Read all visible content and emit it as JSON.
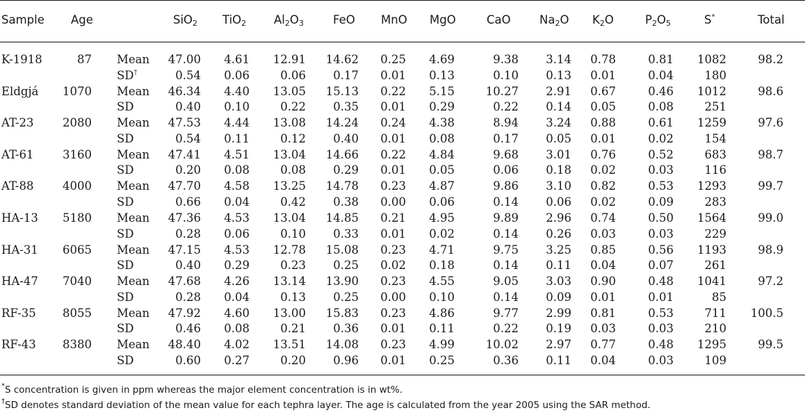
{
  "table": {
    "headers": [
      {
        "key": "sample",
        "label": "Sample"
      },
      {
        "key": "age",
        "label": "Age"
      },
      {
        "key": "stat",
        "label": ""
      },
      {
        "key": "sio2",
        "base": "SiO",
        "sub": "2"
      },
      {
        "key": "tio2",
        "base": "TiO",
        "sub": "2"
      },
      {
        "key": "al2o3",
        "base": "Al",
        "sub": "2",
        "base2": "O",
        "sub2": "3"
      },
      {
        "key": "feo",
        "label": "FeO"
      },
      {
        "key": "mno",
        "label": "MnO"
      },
      {
        "key": "mgo",
        "label": "MgO"
      },
      {
        "key": "cao",
        "label": "CaO"
      },
      {
        "key": "na2o",
        "base": "Na",
        "sub": "2",
        "base2": "O"
      },
      {
        "key": "k2o",
        "base": "K",
        "sub": "2",
        "base2": "O"
      },
      {
        "key": "p2o5",
        "base": "P",
        "sub": "2",
        "base2": "O",
        "sub2": "5"
      },
      {
        "key": "s",
        "base": "S",
        "sup": "*"
      },
      {
        "key": "total",
        "label": "Total"
      }
    ],
    "rows": [
      {
        "sample": "K-1918",
        "age": "87",
        "mean": [
          "47.00",
          "4.61",
          "12.91",
          "14.62",
          "0.25",
          "4.69",
          "9.38",
          "3.14",
          "0.78",
          "0.81",
          "1082"
        ],
        "sd": [
          "0.54",
          "0.06",
          "0.06",
          "0.17",
          "0.01",
          "0.13",
          "0.10",
          "0.13",
          "0.01",
          "0.04",
          "180"
        ],
        "total": "98.2",
        "sd_label": "SD",
        "sd_mark": "†"
      },
      {
        "sample": "Eldgjá",
        "age": "1070",
        "mean": [
          "46.34",
          "4.40",
          "13.05",
          "15.13",
          "0.22",
          "5.15",
          "10.27",
          "2.91",
          "0.67",
          "0.46",
          "1012"
        ],
        "sd": [
          "0.40",
          "0.10",
          "0.22",
          "0.35",
          "0.01",
          "0.29",
          "0.22",
          "0.14",
          "0.05",
          "0.08",
          "251"
        ],
        "total": "98.6",
        "sd_label": "SD",
        "sd_mark": ""
      },
      {
        "sample": "AT-23",
        "age": "2080",
        "mean": [
          "47.53",
          "4.44",
          "13.08",
          "14.24",
          "0.24",
          "4.38",
          "8.94",
          "3.24",
          "0.88",
          "0.61",
          "1259"
        ],
        "sd": [
          "0.54",
          "0.11",
          "0.12",
          "0.40",
          "0.01",
          "0.08",
          "0.17",
          "0.05",
          "0.01",
          "0.02",
          "154"
        ],
        "total": "97.6",
        "sd_label": "SD",
        "sd_mark": ""
      },
      {
        "sample": "AT-61",
        "age": "3160",
        "mean": [
          "47.41",
          "4.51",
          "13.04",
          "14.66",
          "0.22",
          "4.84",
          "9.68",
          "3.01",
          "0.76",
          "0.52",
          "683"
        ],
        "sd": [
          "0.20",
          "0.08",
          "0.08",
          "0.29",
          "0.01",
          "0.05",
          "0.06",
          "0.18",
          "0.02",
          "0.03",
          "116"
        ],
        "total": "98.7",
        "sd_label": "SD",
        "sd_mark": ""
      },
      {
        "sample": "AT-88",
        "age": "4000",
        "mean": [
          "47.70",
          "4.58",
          "13.25",
          "14.78",
          "0.23",
          "4.87",
          "9.86",
          "3.10",
          "0.82",
          "0.53",
          "1293"
        ],
        "sd": [
          "0.66",
          "0.04",
          "0.42",
          "0.38",
          "0.00",
          "0.06",
          "0.14",
          "0.06",
          "0.02",
          "0.09",
          "283"
        ],
        "total": "99.7",
        "sd_label": "SD",
        "sd_mark": ""
      },
      {
        "sample": "HA-13",
        "age": "5180",
        "mean": [
          "47.36",
          "4.53",
          "13.04",
          "14.85",
          "0.21",
          "4.95",
          "9.89",
          "2.96",
          "0.74",
          "0.50",
          "1564"
        ],
        "sd": [
          "0.28",
          "0.06",
          "0.10",
          "0.33",
          "0.01",
          "0.02",
          "0.14",
          "0.26",
          "0.03",
          "0.03",
          "229"
        ],
        "total": "99.0",
        "sd_label": "SD",
        "sd_mark": ""
      },
      {
        "sample": "HA-31",
        "age": "6065",
        "mean": [
          "47.15",
          "4.53",
          "12.78",
          "15.08",
          "0.23",
          "4.71",
          "9.75",
          "3.25",
          "0.85",
          "0.56",
          "1193"
        ],
        "sd": [
          "0.40",
          "0.29",
          "0.23",
          "0.25",
          "0.02",
          "0.18",
          "0.14",
          "0.11",
          "0.04",
          "0.07",
          "261"
        ],
        "total": "98.9",
        "sd_label": "SD",
        "sd_mark": ""
      },
      {
        "sample": "HA-47",
        "age": "7040",
        "mean": [
          "47.68",
          "4.26",
          "13.14",
          "13.90",
          "0.23",
          "4.55",
          "9.05",
          "3.03",
          "0.90",
          "0.48",
          "1041"
        ],
        "sd": [
          "0.28",
          "0.04",
          "0.13",
          "0.25",
          "0.00",
          "0.10",
          "0.14",
          "0.09",
          "0.01",
          "0.01",
          "85"
        ],
        "total": "97.2",
        "sd_label": "SD",
        "sd_mark": ""
      },
      {
        "sample": "RF-35",
        "age": "8055",
        "mean": [
          "47.92",
          "4.60",
          "13.00",
          "15.83",
          "0.23",
          "4.86",
          "9.77",
          "2.99",
          "0.81",
          "0.53",
          "711"
        ],
        "sd": [
          "0.46",
          "0.08",
          "0.21",
          "0.36",
          "0.01",
          "0.11",
          "0.22",
          "0.19",
          "0.03",
          "0.03",
          "210"
        ],
        "total": "100.5",
        "sd_label": "SD",
        "sd_mark": ""
      },
      {
        "sample": "RF-43",
        "age": "8380",
        "mean": [
          "48.40",
          "4.02",
          "13.51",
          "14.08",
          "0.23",
          "4.99",
          "10.02",
          "2.97",
          "0.77",
          "0.48",
          "1295"
        ],
        "sd": [
          "0.60",
          "0.27",
          "0.20",
          "0.96",
          "0.01",
          "0.25",
          "0.36",
          "0.11",
          "0.04",
          "0.03",
          "109"
        ],
        "total": "99.5",
        "sd_label": "SD",
        "sd_mark": ""
      }
    ],
    "mean_label": "Mean"
  },
  "footnotes": [
    {
      "mark": "*",
      "text": "S concentration is given in ppm whereas the major element concentration is in wt%."
    },
    {
      "mark": "†",
      "text": "SD denotes standard deviation of the mean value for each tephra layer. The age is calculated from the year 2005 using the SAR method."
    }
  ]
}
